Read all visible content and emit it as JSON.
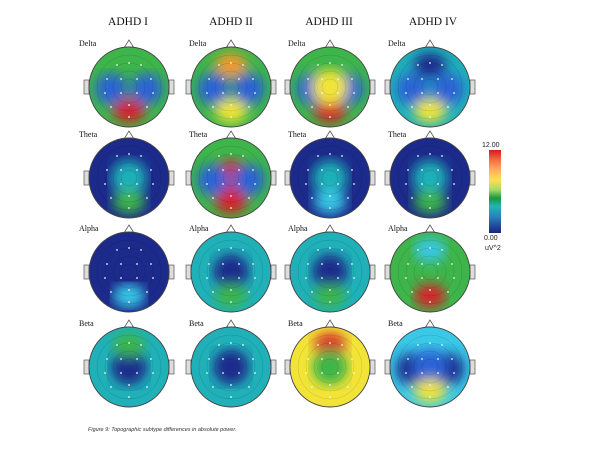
{
  "columns": [
    "ADHD I",
    "ADHD II",
    "ADHD III",
    "ADHD IV"
  ],
  "bands": [
    "Delta",
    "Theta",
    "Alpha",
    "Beta"
  ],
  "colorbar": {
    "max_label": "12.00",
    "min_label": "0.00",
    "unit_label": "uV^2"
  },
  "caption": "Figure 9: Topographic subtype differences in absolute power.",
  "maps": [
    {
      "subtype": "ADHD I",
      "band": "Delta",
      "base": "green",
      "features": [
        [
          "red",
          "posterior"
        ],
        [
          "blue",
          "left"
        ],
        [
          "blue",
          "right"
        ]
      ]
    },
    {
      "subtype": "ADHD II",
      "band": "Delta",
      "base": "green",
      "features": [
        [
          "orange",
          "anterior"
        ],
        [
          "blue",
          "left"
        ],
        [
          "blue",
          "right"
        ],
        [
          "yellow",
          "posterior"
        ]
      ]
    },
    {
      "subtype": "ADHD III",
      "band": "Delta",
      "base": "green",
      "features": [
        [
          "red",
          "posterior"
        ],
        [
          "blue",
          "left"
        ],
        [
          "blue",
          "right"
        ],
        [
          "yellow",
          "center"
        ]
      ]
    },
    {
      "subtype": "ADHD IV",
      "band": "Delta",
      "base": "teal",
      "features": [
        [
          "blue",
          "left"
        ],
        [
          "blue",
          "right"
        ],
        [
          "navy",
          "anterior"
        ],
        [
          "yellow",
          "posterior"
        ]
      ]
    },
    {
      "subtype": "ADHD I",
      "band": "Theta",
      "base": "navy",
      "features": [
        [
          "teal",
          "center"
        ],
        [
          "green",
          "posterior"
        ]
      ]
    },
    {
      "subtype": "ADHD II",
      "band": "Theta",
      "base": "green",
      "features": [
        [
          "red",
          "center"
        ],
        [
          "blue",
          "left"
        ],
        [
          "blue",
          "right"
        ],
        [
          "red",
          "posterior"
        ]
      ]
    },
    {
      "subtype": "ADHD III",
      "band": "Theta",
      "base": "navy",
      "features": [
        [
          "teal",
          "center"
        ],
        [
          "cyan",
          "posterior"
        ]
      ]
    },
    {
      "subtype": "ADHD IV",
      "band": "Theta",
      "base": "navy",
      "features": [
        [
          "teal",
          "center"
        ],
        [
          "green",
          "posterior"
        ]
      ]
    },
    {
      "subtype": "ADHD I",
      "band": "Alpha",
      "base": "navy",
      "features": [
        [
          "cyan",
          "posterior"
        ]
      ]
    },
    {
      "subtype": "ADHD II",
      "band": "Alpha",
      "base": "teal",
      "features": [
        [
          "navy",
          "center"
        ],
        [
          "green",
          "posterior"
        ]
      ]
    },
    {
      "subtype": "ADHD III",
      "band": "Alpha",
      "base": "teal",
      "features": [
        [
          "navy",
          "center"
        ],
        [
          "green",
          "posterior"
        ]
      ]
    },
    {
      "subtype": "ADHD IV",
      "band": "Alpha",
      "base": "green",
      "features": [
        [
          "orange",
          "posterior"
        ],
        [
          "red",
          "posterior"
        ],
        [
          "cyan",
          "anterior"
        ]
      ]
    },
    {
      "subtype": "ADHD I",
      "band": "Beta",
      "base": "teal",
      "features": [
        [
          "navy",
          "center"
        ],
        [
          "green",
          "anterior"
        ]
      ]
    },
    {
      "subtype": "ADHD II",
      "band": "Beta",
      "base": "teal",
      "features": [
        [
          "navy",
          "center"
        ]
      ]
    },
    {
      "subtype": "ADHD III",
      "band": "Beta",
      "base": "yellow",
      "features": [
        [
          "red",
          "anterior"
        ],
        [
          "green",
          "center"
        ]
      ]
    },
    {
      "subtype": "ADHD IV",
      "band": "Beta",
      "base": "cyan",
      "features": [
        [
          "navy",
          "left"
        ],
        [
          "navy",
          "right"
        ],
        [
          "blue",
          "center"
        ],
        [
          "yellow",
          "posterior"
        ]
      ]
    }
  ]
}
